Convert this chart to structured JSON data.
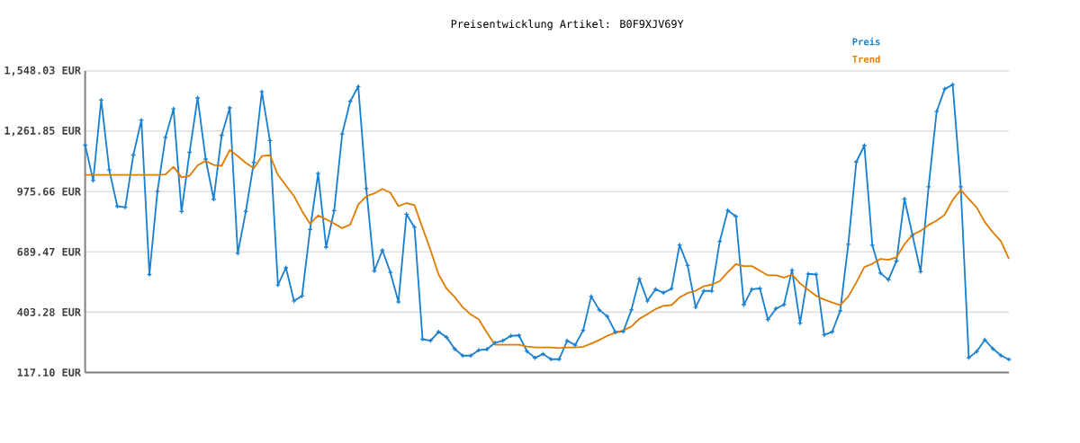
{
  "chart_data": {
    "type": "line",
    "title": "Preisentwicklung Artikel: B0F9XJV69Y",
    "categories": [
      null,
      null,
      null,
      null,
      null,
      null,
      null,
      null,
      null,
      null,
      null,
      null,
      null,
      null,
      null,
      null,
      null,
      null,
      null,
      null,
      null,
      null,
      null,
      null,
      null,
      null,
      null,
      null,
      null,
      null,
      null,
      null,
      null,
      null,
      null,
      null,
      null,
      null,
      null,
      null,
      null,
      null,
      null,
      null,
      null,
      null,
      null,
      null,
      null,
      null,
      null,
      null,
      null,
      null,
      null,
      null,
      null,
      null,
      null,
      null,
      null,
      null,
      null,
      null,
      null,
      null,
      null,
      null,
      null,
      null,
      null,
      null,
      null,
      null,
      null,
      null,
      null,
      null,
      null,
      null,
      null,
      null,
      null,
      null,
      null,
      null,
      null,
      null,
      null,
      null,
      null,
      null,
      null,
      null,
      null,
      null,
      null,
      null,
      null,
      null,
      null,
      null,
      null,
      null,
      null,
      null,
      null,
      null,
      null,
      null,
      null,
      null,
      null,
      null,
      null,
      null
    ],
    "series": [
      {
        "name": "Preis",
        "color": "#1a80d0",
        "marker": "cross",
        "values": [
          1196,
          1028,
          1410,
          1078,
          906,
          901,
          1149,
          1315,
          582,
          977,
          1233,
          1368,
          881,
          1162,
          1420,
          1130,
          939,
          1243,
          1373,
          683,
          881,
          1114,
          1449,
          1218,
          532,
          614,
          457,
          480,
          796,
          1061,
          712,
          885,
          1249,
          1404,
          1474,
          990,
          599,
          697,
          592,
          452,
          868,
          806,
          275,
          268,
          310,
          284,
          229,
          197,
          197,
          223,
          227,
          257,
          268,
          291,
          293,
          218,
          186,
          205,
          180,
          180,
          268,
          247,
          317,
          478,
          414,
          383,
          309,
          312,
          414,
          561,
          457,
          512,
          495,
          515,
          722,
          625,
          427,
          504,
          504,
          739,
          886,
          858,
          439,
          512,
          516,
          368,
          420,
          439,
          603,
          351,
          585,
          582,
          296,
          310,
          410,
          725,
          1116,
          1194,
          721,
          589,
          557,
          646,
          941,
          768,
          595,
          998,
          1355,
          1462,
          1483,
          998,
          187,
          217,
          272,
          230,
          198,
          179
        ]
      },
      {
        "name": "Trend",
        "color": "#e07c00",
        "values": [
          1055,
          1055,
          1055,
          1055,
          1055,
          1055,
          1055,
          1055,
          1055,
          1055,
          1057,
          1093,
          1043,
          1051,
          1100,
          1121,
          1102,
          1098,
          1173,
          1144,
          1112,
          1086,
          1144,
          1148,
          1055,
          1004,
          954,
          883,
          823,
          862,
          844,
          824,
          802,
          819,
          914,
          953,
          967,
          988,
          970,
          907,
          921,
          911,
          803,
          697,
          582,
          515,
          475,
          427,
          393,
          369,
          307,
          249,
          249,
          249,
          249,
          240,
          236,
          236,
          236,
          233,
          236,
          236,
          239,
          254,
          271,
          291,
          305,
          317,
          335,
          372,
          394,
          418,
          433,
          437,
          473,
          494,
          505,
          526,
          534,
          551,
          593,
          631,
          622,
          622,
          600,
          578,
          578,
          568,
          582,
          540,
          509,
          481,
          463,
          449,
          436,
          477,
          544,
          618,
          633,
          656,
          652,
          663,
          726,
          771,
          789,
          817,
          838,
          866,
          936,
          983,
          941,
          899,
          831,
          782,
          740,
          656
        ]
      }
    ],
    "ylim": [
      117.1,
      1548.03
    ],
    "yticks": [
      {
        "value": 117.1,
        "label": "117.10 EUR"
      },
      {
        "value": 403.28,
        "label": "403.28 EUR"
      },
      {
        "value": 689.47,
        "label": "689.47 EUR"
      },
      {
        "value": 975.66,
        "label": "975.66 EUR"
      },
      {
        "value": 1261.85,
        "label": "1,261.85 EUR"
      },
      {
        "value": 1548.03,
        "label": "1,548.03 EUR"
      }
    ],
    "tick_labels": "y",
    "grid": "y",
    "legend": "top right",
    "line_style": "solid"
  }
}
